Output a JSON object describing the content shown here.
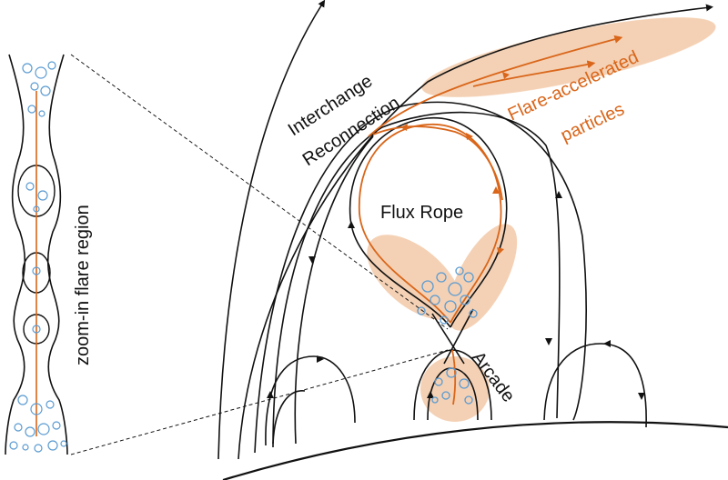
{
  "labels": {
    "interchange_line1": "Interchange",
    "interchange_line2": "Reconnection",
    "flare_line1": "Flare-accelerated",
    "flare_line2": "particles",
    "flux_rope": "Flux Rope",
    "arcade": "Arcade",
    "zoom": "zoom-in flare region"
  },
  "colors": {
    "field_line": "#111111",
    "particle_path": "#d9661a",
    "highlight_fill": "#f2c9a8",
    "bubble": "#5b9bd1"
  }
}
